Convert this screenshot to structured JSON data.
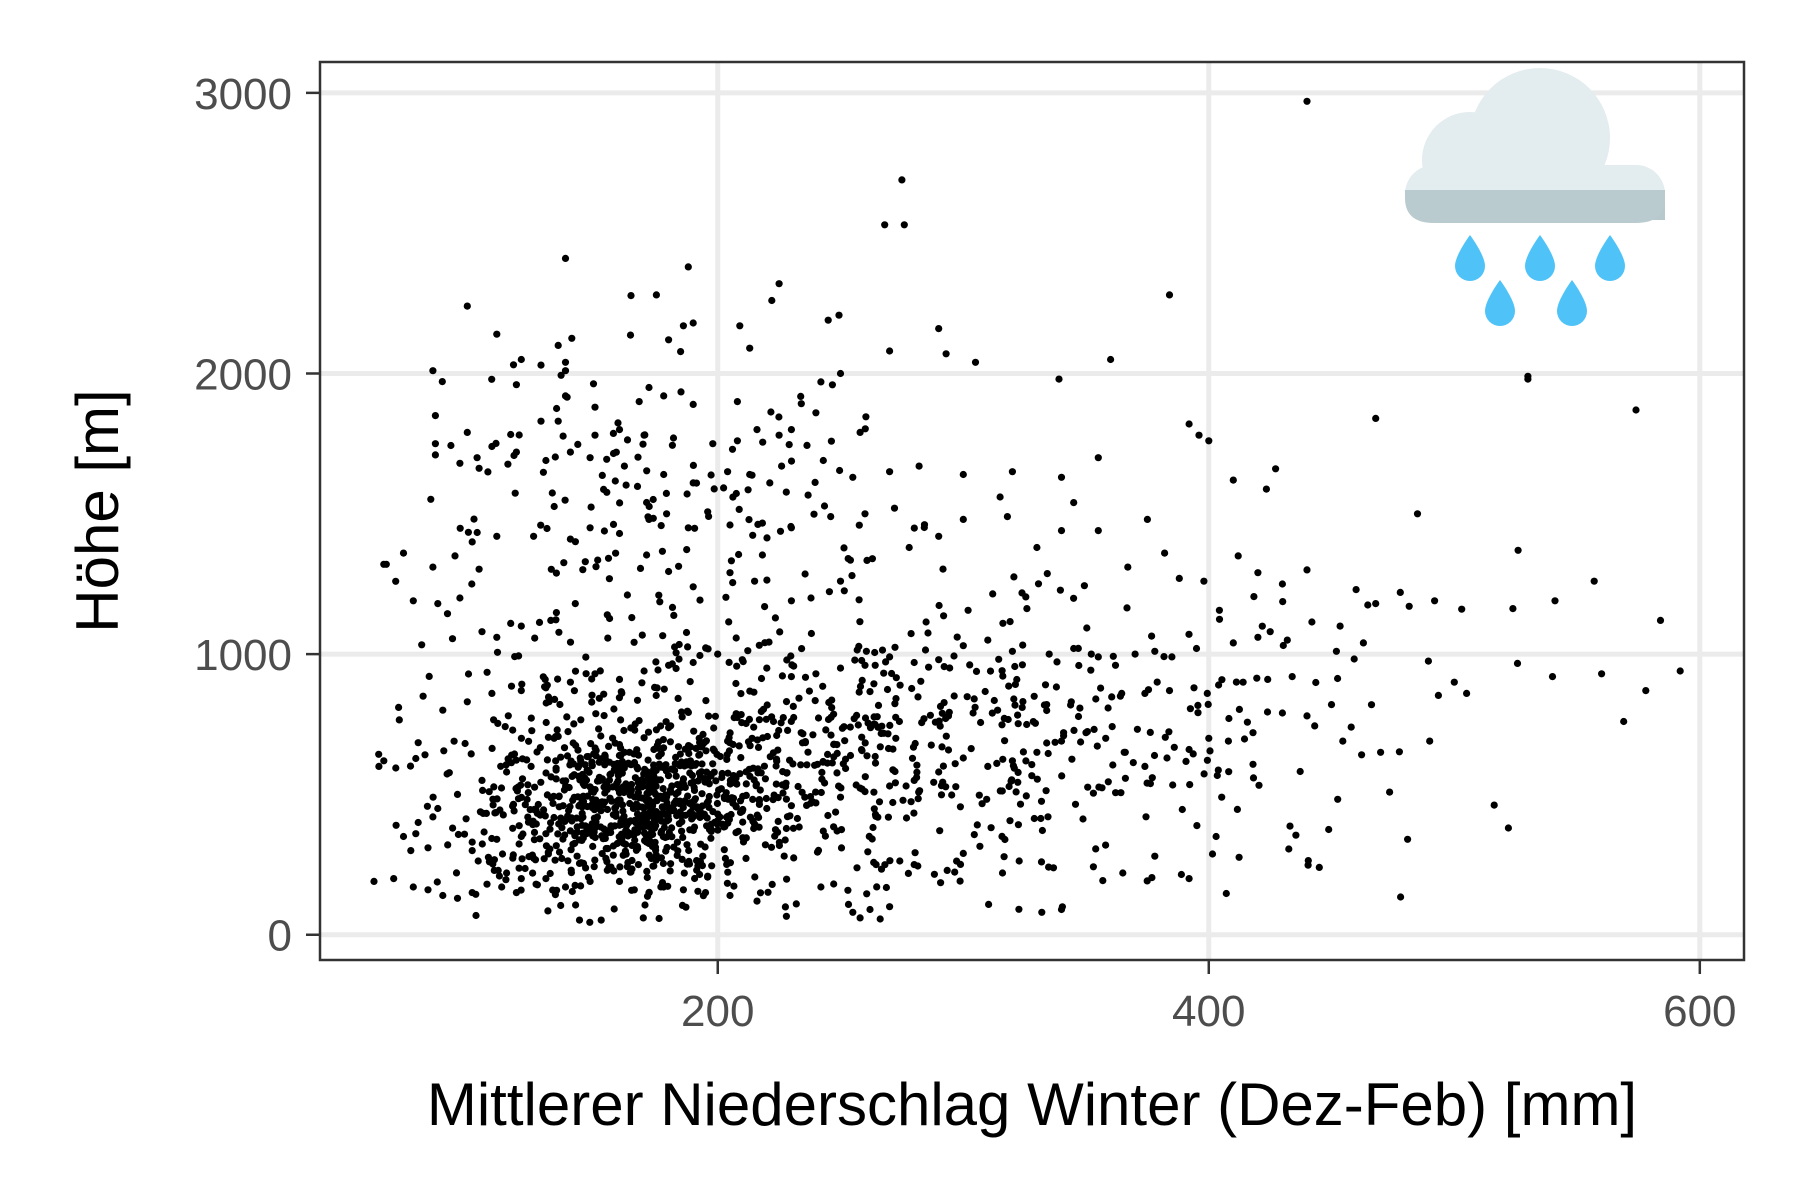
{
  "chart_data": {
    "type": "scatter",
    "title": "",
    "xlabel": "Mittlerer Niederschlag Winter (Dez-Feb) [mm]",
    "ylabel": "Höhe [m]",
    "xlim": [
      38,
      618
    ],
    "ylim": [
      -90,
      3110
    ],
    "xticks": [
      200,
      400,
      600
    ],
    "yticks": [
      0,
      1000,
      2000,
      3000
    ],
    "xtick_labels": [
      "200",
      "400",
      "600"
    ],
    "ytick_labels": [
      "0",
      "1000",
      "2000",
      "3000"
    ],
    "grid": true,
    "legend": "none",
    "marker_color": "#000000",
    "point_count_approx": 2000,
    "icon": "cloud-with-rain-icon",
    "points": [
      [
        440,
        2970
      ],
      [
        275,
        2690
      ],
      [
        268,
        2530
      ],
      [
        276,
        2530
      ],
      [
        138,
        2410
      ],
      [
        225,
        2320
      ],
      [
        188,
        2380
      ],
      [
        222,
        2260
      ],
      [
        175,
        2280
      ],
      [
        384,
        2280
      ],
      [
        98,
        2240
      ],
      [
        110,
        2140
      ],
      [
        190,
        2180
      ],
      [
        209,
        2170
      ],
      [
        245,
        2190
      ],
      [
        290,
        2160
      ],
      [
        213,
        2090
      ],
      [
        135,
        2100
      ],
      [
        138,
        2040
      ],
      [
        138,
        2010
      ],
      [
        128,
        2030
      ],
      [
        120,
        2050
      ],
      [
        180,
        2120
      ],
      [
        186,
        2170
      ],
      [
        270,
        2080
      ],
      [
        305,
        2040
      ],
      [
        360,
        2050
      ],
      [
        339,
        1980
      ],
      [
        293,
        2070
      ],
      [
        530,
        1980
      ],
      [
        530,
        1990
      ],
      [
        574,
        1870
      ],
      [
        250,
        2000
      ],
      [
        242,
        1970
      ],
      [
        118,
        1960
      ],
      [
        84,
        2010
      ],
      [
        85,
        1850
      ],
      [
        98,
        1790
      ],
      [
        85,
        1750
      ],
      [
        85,
        1710
      ],
      [
        95,
        1680
      ],
      [
        102,
        1700
      ],
      [
        108,
        1740
      ],
      [
        118,
        1720
      ],
      [
        130,
        1690
      ],
      [
        140,
        1720
      ],
      [
        128,
        1830
      ],
      [
        135,
        1830
      ],
      [
        138,
        1920
      ],
      [
        150,
        1880
      ],
      [
        168,
        1900
      ],
      [
        172,
        1950
      ],
      [
        178,
        1920
      ],
      [
        190,
        1890
      ],
      [
        208,
        1900
      ],
      [
        216,
        1800
      ],
      [
        230,
        1800
      ],
      [
        240,
        1860
      ],
      [
        258,
        1790
      ],
      [
        225,
        1780
      ],
      [
        208,
        1760
      ],
      [
        206,
        1730
      ],
      [
        198,
        1750
      ],
      [
        182,
        1770
      ],
      [
        170,
        1780
      ],
      [
        160,
        1800
      ],
      [
        150,
        1780
      ],
      [
        148,
        1700
      ],
      [
        162,
        1670
      ],
      [
        178,
        1640
      ],
      [
        190,
        1610
      ],
      [
        204,
        1650
      ],
      [
        213,
        1640
      ],
      [
        226,
        1670
      ],
      [
        243,
        1690
      ],
      [
        255,
        1630
      ],
      [
        270,
        1650
      ],
      [
        282,
        1670
      ],
      [
        300,
        1640
      ],
      [
        320,
        1650
      ],
      [
        340,
        1630
      ],
      [
        355,
        1700
      ],
      [
        392,
        1820
      ],
      [
        396,
        1780
      ],
      [
        400,
        1760
      ],
      [
        410,
        1620
      ],
      [
        468,
        1840
      ],
      [
        485,
        1500
      ],
      [
        272,
        1520
      ],
      [
        260,
        1500
      ],
      [
        246,
        1490
      ],
      [
        230,
        1450
      ],
      [
        205,
        1460
      ],
      [
        188,
        1450
      ],
      [
        172,
        1480
      ],
      [
        160,
        1430
      ],
      [
        148,
        1450
      ],
      [
        140,
        1410
      ],
      [
        125,
        1420
      ],
      [
        110,
        1420
      ],
      [
        100,
        1400
      ],
      [
        93,
        1350
      ],
      [
        84,
        1310
      ],
      [
        72,
        1360
      ],
      [
        65,
        1320
      ],
      [
        64,
        1320
      ],
      [
        76,
        1190
      ],
      [
        86,
        1180
      ],
      [
        95,
        1200
      ],
      [
        104,
        1080
      ],
      [
        110,
        1060
      ],
      [
        120,
        1100
      ],
      [
        132,
        1120
      ],
      [
        142,
        1180
      ],
      [
        155,
        1140
      ],
      [
        165,
        1130
      ],
      [
        176,
        1210
      ],
      [
        190,
        1240
      ],
      [
        205,
        1290
      ],
      [
        215,
        1260
      ],
      [
        230,
        1190
      ],
      [
        238,
        1200
      ],
      [
        250,
        1260
      ],
      [
        263,
        1340
      ],
      [
        278,
        1380
      ],
      [
        290,
        1420
      ],
      [
        300,
        1480
      ],
      [
        315,
        1560
      ],
      [
        318,
        1490
      ],
      [
        330,
        1380
      ],
      [
        340,
        1440
      ],
      [
        345,
        1540
      ],
      [
        355,
        1440
      ],
      [
        367,
        1310
      ],
      [
        375,
        1480
      ],
      [
        382,
        1360
      ],
      [
        388,
        1270
      ],
      [
        398,
        1260
      ],
      [
        412,
        1350
      ],
      [
        420,
        1290
      ],
      [
        430,
        1250
      ],
      [
        440,
        1300
      ],
      [
        460,
        1230
      ],
      [
        478,
        1220
      ],
      [
        492,
        1190
      ],
      [
        503,
        1160
      ],
      [
        526,
        1370
      ],
      [
        541,
        1190
      ],
      [
        557,
        1260
      ],
      [
        584,
        1120
      ],
      [
        468,
        1180
      ],
      [
        452,
        1010
      ],
      [
        463,
        1040
      ],
      [
        425,
        1080
      ],
      [
        432,
        1050
      ],
      [
        420,
        1060
      ],
      [
        410,
        1040
      ],
      [
        395,
        1020
      ],
      [
        385,
        990
      ],
      [
        378,
        1010
      ],
      [
        370,
        1000
      ],
      [
        362,
        960
      ],
      [
        355,
        990
      ],
      [
        345,
        1020
      ],
      [
        335,
        1000
      ],
      [
        320,
        1010
      ],
      [
        310,
        1050
      ],
      [
        300,
        1030
      ],
      [
        290,
        980
      ],
      [
        280,
        970
      ],
      [
        270,
        990
      ],
      [
        260,
        960
      ],
      [
        250,
        950
      ],
      [
        240,
        930
      ],
      [
        230,
        920
      ],
      [
        220,
        950
      ],
      [
        210,
        980
      ],
      [
        200,
        1000
      ],
      [
        190,
        970
      ],
      [
        180,
        960
      ],
      [
        170,
        940
      ],
      [
        160,
        910
      ],
      [
        150,
        930
      ],
      [
        140,
        900
      ],
      [
        130,
        880
      ],
      [
        120,
        870
      ],
      [
        108,
        860
      ],
      [
        98,
        830
      ],
      [
        88,
        800
      ],
      [
        80,
        850
      ],
      [
        70,
        810
      ],
      [
        64,
        620
      ],
      [
        62,
        600
      ],
      [
        69,
        390
      ],
      [
        77,
        360
      ],
      [
        84,
        420
      ],
      [
        92,
        380
      ],
      [
        100,
        300
      ],
      [
        107,
        260
      ],
      [
        114,
        220
      ],
      [
        120,
        200
      ],
      [
        126,
        180
      ],
      [
        60,
        190
      ],
      [
        68,
        200
      ],
      [
        76,
        170
      ],
      [
        82,
        160
      ],
      [
        88,
        140
      ],
      [
        94,
        130
      ],
      [
        100,
        150
      ],
      [
        106,
        180
      ],
      [
        112,
        170
      ],
      [
        118,
        150
      ],
      [
        130,
        200
      ],
      [
        138,
        170
      ],
      [
        148,
        190
      ],
      [
        160,
        190
      ],
      [
        166,
        160
      ],
      [
        172,
        150
      ],
      [
        178,
        170
      ],
      [
        186,
        160
      ],
      [
        195,
        150
      ],
      [
        205,
        140
      ],
      [
        216,
        120
      ],
      [
        232,
        110
      ],
      [
        242,
        170
      ],
      [
        255,
        80
      ],
      [
        258,
        60
      ],
      [
        262,
        90
      ],
      [
        270,
        100
      ],
      [
        280,
        250
      ],
      [
        300,
        290
      ],
      [
        316,
        220
      ],
      [
        332,
        80
      ],
      [
        340,
        90
      ],
      [
        365,
        220
      ],
      [
        378,
        280
      ],
      [
        392,
        200
      ],
      [
        403,
        350
      ],
      [
        445,
        240
      ],
      [
        481,
        340
      ],
      [
        540,
        920
      ],
      [
        560,
        930
      ],
      [
        569,
        760
      ],
      [
        578,
        870
      ],
      [
        592,
        940
      ],
      [
        500,
        900
      ],
      [
        505,
        860
      ],
      [
        490,
        690
      ],
      [
        470,
        650
      ],
      [
        458,
        740
      ],
      [
        450,
        820
      ],
      [
        440,
        780
      ],
      [
        430,
        790
      ],
      [
        418,
        720
      ],
      [
        408,
        690
      ],
      [
        400,
        700
      ],
      [
        392,
        660
      ],
      [
        383,
        630
      ],
      [
        374,
        600
      ],
      [
        366,
        650
      ],
      [
        358,
        700
      ],
      [
        350,
        720
      ],
      [
        340,
        690
      ],
      [
        330,
        650
      ],
      [
        320,
        620
      ],
      [
        310,
        600
      ],
      [
        300,
        630
      ],
      [
        290,
        580
      ],
      [
        280,
        550
      ],
      [
        270,
        530
      ],
      [
        260,
        510
      ],
      [
        250,
        490
      ],
      [
        240,
        470
      ],
      [
        230,
        460
      ],
      [
        220,
        450
      ],
      [
        210,
        440
      ],
      [
        200,
        430
      ],
      [
        190,
        420
      ],
      [
        180,
        410
      ],
      [
        170,
        400
      ],
      [
        160,
        390
      ],
      [
        150,
        380
      ],
      [
        140,
        370
      ],
      [
        130,
        360
      ],
      [
        120,
        350
      ],
      [
        110,
        340
      ],
      [
        100,
        330
      ],
      [
        90,
        320
      ],
      [
        82,
        310
      ],
      [
        75,
        300
      ],
      [
        72,
        350
      ],
      [
        78,
        400
      ],
      [
        86,
        450
      ],
      [
        94,
        500
      ],
      [
        104,
        550
      ],
      [
        114,
        580
      ],
      [
        124,
        600
      ],
      [
        134,
        620
      ],
      [
        144,
        630
      ],
      [
        154,
        640
      ],
      [
        164,
        650
      ],
      [
        174,
        660
      ],
      [
        184,
        670
      ],
      [
        194,
        680
      ],
      [
        204,
        690
      ],
      [
        214,
        700
      ],
      [
        224,
        710
      ],
      [
        234,
        720
      ],
      [
        244,
        730
      ],
      [
        254,
        740
      ],
      [
        264,
        750
      ],
      [
        274,
        760
      ],
      [
        284,
        770
      ],
      [
        294,
        780
      ],
      [
        304,
        790
      ],
      [
        314,
        800
      ],
      [
        324,
        810
      ],
      [
        334,
        820
      ],
      [
        344,
        830
      ],
      [
        354,
        840
      ],
      [
        364,
        850
      ],
      [
        374,
        860
      ],
      [
        384,
        870
      ],
      [
        394,
        880
      ],
      [
        404,
        890
      ],
      [
        414,
        900
      ],
      [
        424,
        910
      ],
      [
        434,
        920
      ]
    ],
    "note": "Dense cluster centered near x≈165 mm, y≈450 m with a broad diffuse spread toward higher precipitation and elevation"
  }
}
